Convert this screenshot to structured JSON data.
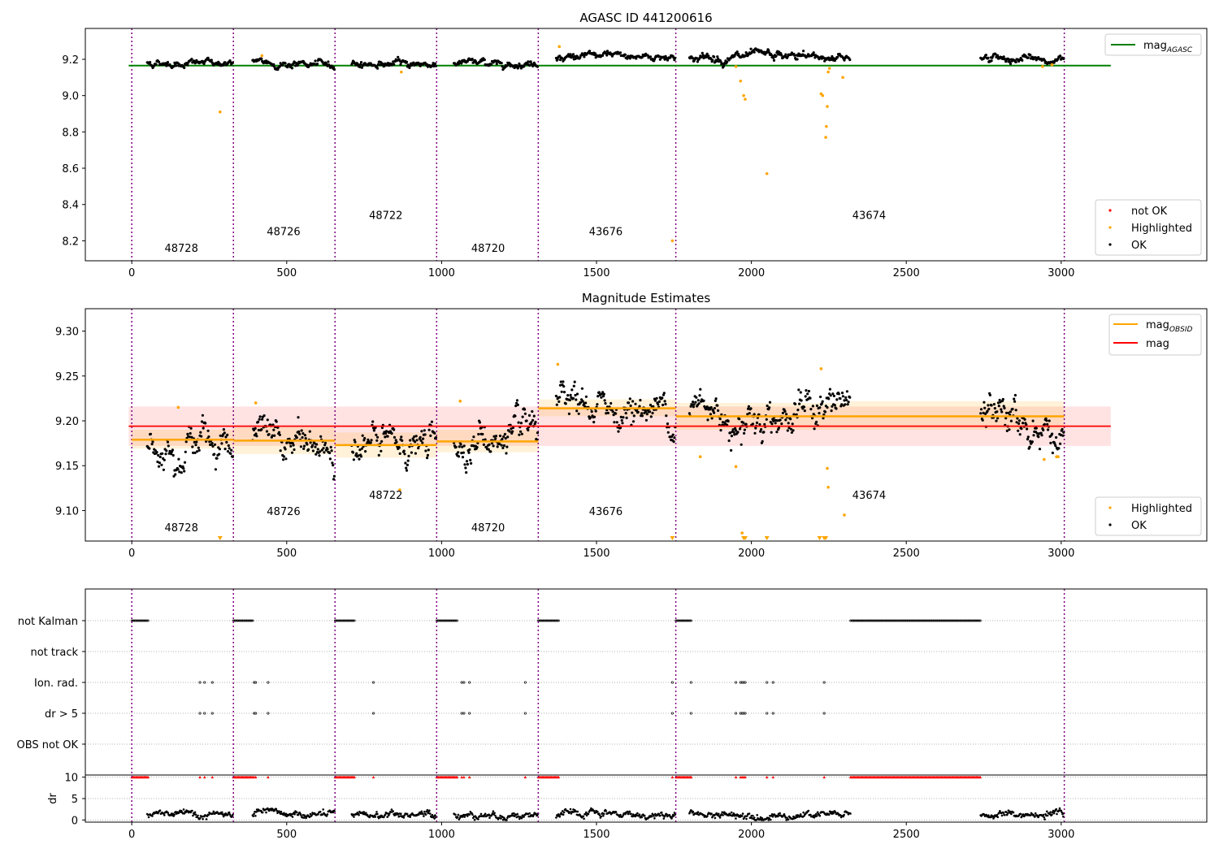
{
  "colors": {
    "ok": "#000000",
    "highlighted": "#ffa500",
    "not_ok": "#ff0000",
    "agasc_line": "#008000",
    "obsid_line": "#ffa500",
    "mag_line": "#ff0000",
    "obsid_sep": "#800080",
    "grid": "#b0b0b0"
  },
  "chart_data": [
    {
      "type": "scatter",
      "title": "AGASC ID 441200616",
      "xlim": [
        -150,
        3470
      ],
      "ylim": [
        8.09,
        9.37
      ],
      "xticks": [
        "0",
        "500",
        "1000",
        "1500",
        "2000",
        "2500",
        "3000"
      ],
      "xtick_values": [
        0,
        500,
        1000,
        1500,
        2000,
        2500,
        3000
      ],
      "yticks": [
        "8.2",
        "8.4",
        "8.6",
        "8.8",
        "9.0",
        "9.2"
      ],
      "ytick_values": [
        8.2,
        8.4,
        8.6,
        8.8,
        9.0,
        9.2
      ],
      "obsid_boundaries": [
        0,
        328,
        656,
        984,
        1312,
        1756,
        3010
      ],
      "obsids": [
        {
          "label": "48728",
          "x": 160,
          "y": 8.14
        },
        {
          "label": "48726",
          "x": 490,
          "y": 8.23
        },
        {
          "label": "48722",
          "x": 820,
          "y": 8.32
        },
        {
          "label": "48720",
          "x": 1150,
          "y": 8.14
        },
        {
          "label": "43676",
          "x": 1530,
          "y": 8.23
        },
        {
          "label": "43674",
          "x": 2380,
          "y": 8.32
        }
      ],
      "mag_agasc": {
        "value": 9.165,
        "x_range": [
          -10,
          3160
        ]
      },
      "ok_segments": [
        {
          "x0": 50,
          "x1": 328,
          "level": 9.18,
          "trend": 0.0,
          "noise": 0.012
        },
        {
          "x0": 390,
          "x1": 656,
          "level": 9.18,
          "trend": -0.015,
          "noise": 0.012
        },
        {
          "x0": 710,
          "x1": 984,
          "level": 9.175,
          "trend": 0.0,
          "noise": 0.012
        },
        {
          "x0": 1040,
          "x1": 1312,
          "level": 9.18,
          "trend": 0.0,
          "noise": 0.012
        },
        {
          "x0": 1370,
          "x1": 1756,
          "level": 9.215,
          "trend": 0.0,
          "noise": 0.012
        },
        {
          "x0": 1800,
          "x1": 2320,
          "level": 9.205,
          "trend": 0.01,
          "noise": 0.015
        },
        {
          "x0": 2740,
          "x1": 3010,
          "level": 9.21,
          "trend": -0.02,
          "noise": 0.013
        }
      ],
      "highlighted": [
        [
          285,
          8.91
        ],
        [
          1950,
          9.16
        ],
        [
          1965,
          9.08
        ],
        [
          1975,
          9.0
        ],
        [
          1980,
          8.98
        ],
        [
          2050,
          8.57
        ],
        [
          2225,
          9.01
        ],
        [
          2230,
          9.0
        ],
        [
          2240,
          8.77
        ],
        [
          2242,
          8.83
        ],
        [
          2245,
          8.94
        ],
        [
          2248,
          9.13
        ],
        [
          2252,
          9.15
        ],
        [
          2295,
          9.1
        ],
        [
          1745,
          8.2
        ],
        [
          1380,
          9.27
        ],
        [
          870,
          9.13
        ],
        [
          2940,
          9.16
        ],
        [
          2970,
          9.17
        ],
        [
          420,
          9.22
        ]
      ],
      "legend": [
        {
          "label": "not OK",
          "kind": "not_ok"
        },
        {
          "label": "Highlighted",
          "kind": "highlighted"
        },
        {
          "label": "OK",
          "kind": "ok"
        }
      ],
      "line_legend": [
        {
          "label": "mag",
          "subscript": "AGASC"
        }
      ]
    },
    {
      "type": "scatter",
      "title": "Magnitude Estimates",
      "xlim": [
        -150,
        3470
      ],
      "ylim": [
        9.066,
        9.325
      ],
      "xticks": [
        "0",
        "500",
        "1000",
        "1500",
        "2000",
        "2500",
        "3000"
      ],
      "xtick_values": [
        0,
        500,
        1000,
        1500,
        2000,
        2500,
        3000
      ],
      "yticks": [
        "9.10",
        "9.15",
        "9.20",
        "9.25",
        "9.30"
      ],
      "ytick_values": [
        9.1,
        9.15,
        9.2,
        9.25,
        9.3
      ],
      "obsid_boundaries": [
        0,
        328,
        656,
        984,
        1312,
        1756,
        3010
      ],
      "obsids": [
        {
          "label": "48728",
          "x": 160,
          "y": 9.077
        },
        {
          "label": "48726",
          "x": 490,
          "y": 9.095
        },
        {
          "label": "48722",
          "x": 820,
          "y": 9.113
        },
        {
          "label": "48720",
          "x": 1150,
          "y": 9.077
        },
        {
          "label": "43676",
          "x": 1530,
          "y": 9.095
        },
        {
          "label": "43674",
          "x": 2380,
          "y": 9.113
        }
      ],
      "mag": {
        "value": 9.194,
        "band": [
          9.172,
          9.216
        ],
        "x_range": [
          -10,
          3160
        ]
      },
      "mag_obsid": [
        {
          "x0": 0,
          "x1": 328,
          "value": 9.179,
          "band": [
            9.169,
            9.19
          ]
        },
        {
          "x0": 328,
          "x1": 656,
          "value": 9.178,
          "band": [
            9.163,
            9.193
          ]
        },
        {
          "x0": 656,
          "x1": 984,
          "value": 9.173,
          "band": [
            9.159,
            9.187
          ]
        },
        {
          "x0": 984,
          "x1": 1312,
          "value": 9.177,
          "band": [
            9.165,
            9.19
          ]
        },
        {
          "x0": 1312,
          "x1": 1756,
          "value": 9.214,
          "band": [
            9.205,
            9.224
          ]
        },
        {
          "x0": 1756,
          "x1": 2320,
          "value": 9.205,
          "band": [
            9.19,
            9.22
          ]
        },
        {
          "x0": 2320,
          "x1": 3010,
          "value": 9.205,
          "band": [
            9.19,
            9.222
          ]
        }
      ],
      "ok_segments": [
        {
          "x0": 50,
          "x1": 328,
          "level": 9.18,
          "trend": 0.0,
          "noise": 0.012
        },
        {
          "x0": 390,
          "x1": 656,
          "level": 9.18,
          "trend": -0.015,
          "noise": 0.012
        },
        {
          "x0": 710,
          "x1": 984,
          "level": 9.172,
          "trend": 0.0,
          "noise": 0.012
        },
        {
          "x0": 1040,
          "x1": 1312,
          "level": 9.178,
          "trend": 0.0,
          "noise": 0.012
        },
        {
          "x0": 1370,
          "x1": 1756,
          "level": 9.213,
          "trend": 0.0,
          "noise": 0.011
        },
        {
          "x0": 1800,
          "x1": 2320,
          "level": 9.205,
          "trend": 0.01,
          "noise": 0.014
        },
        {
          "x0": 2740,
          "x1": 3010,
          "level": 9.21,
          "trend": -0.025,
          "noise": 0.012
        }
      ],
      "highlighted": [
        [
          150,
          9.215
        ],
        [
          400,
          9.22
        ],
        [
          865,
          9.123
        ],
        [
          1060,
          9.222
        ],
        [
          1375,
          9.263
        ],
        [
          1835,
          9.16
        ],
        [
          1950,
          9.149
        ],
        [
          1970,
          9.075
        ],
        [
          2225,
          9.258
        ],
        [
          2245,
          9.147
        ],
        [
          2248,
          9.126
        ],
        [
          2300,
          9.095
        ],
        [
          2945,
          9.157
        ],
        [
          2985,
          9.16
        ],
        [
          2990,
          9.16
        ]
      ],
      "highlighted_offscale": [
        285,
        1745,
        1975,
        1980,
        2050,
        2220,
        2235,
        2240
      ],
      "legend": [
        {
          "label": "Highlighted",
          "kind": "highlighted"
        },
        {
          "label": "OK",
          "kind": "ok"
        }
      ],
      "line_legend": [
        {
          "label": "mag",
          "subscript": "OBSID",
          "kind": "obsid"
        },
        {
          "label": "mag",
          "subscript": "",
          "kind": "mag"
        }
      ]
    },
    {
      "type": "scatter",
      "title": "",
      "xlim": [
        -150,
        3470
      ],
      "ylabel": "dr",
      "xticks": [
        "0",
        "500",
        "1000",
        "1500",
        "2000",
        "2500",
        "3000"
      ],
      "xtick_values": [
        0,
        500,
        1000,
        1500,
        2000,
        2500,
        3000
      ],
      "flag_rows": [
        "not Kalman",
        "not track",
        "Ion. rad.",
        "dr > 5",
        "OBS not OK"
      ],
      "flags": {
        "not Kalman": [
          [
            0,
            55
          ],
          [
            328,
            393
          ],
          [
            656,
            721
          ],
          [
            984,
            1052
          ],
          [
            1312,
            1380
          ],
          [
            1756,
            1808
          ],
          [
            2320,
            2740
          ]
        ],
        "not track": [],
        "Ion. rad.": [
          220,
          235,
          260,
          395,
          400,
          440,
          780,
          1065,
          1072,
          1090,
          1270,
          1745,
          1805,
          1950,
          1965,
          1970,
          1975,
          1980,
          2050,
          2070,
          2235
        ],
        "dr > 5": [
          220,
          235,
          260,
          395,
          400,
          440,
          780,
          1065,
          1072,
          1090,
          1270,
          1745,
          1805,
          1950,
          1965,
          1970,
          1975,
          1980,
          2050,
          2070,
          2235
        ]
      },
      "dr_yticks": [
        "0",
        "5",
        "10"
      ],
      "dr_ytick_values": [
        0,
        5,
        10
      ],
      "dr_ylim": [
        -0.5,
        10.5
      ],
      "dr_clipped_value": 10,
      "dr_ok_segments": [
        [
          50,
          328
        ],
        [
          390,
          656
        ],
        [
          710,
          984
        ],
        [
          1040,
          1312
        ],
        [
          1370,
          1756
        ],
        [
          1800,
          2320
        ],
        [
          2740,
          3010
        ]
      ],
      "dr_ok_level": 1.2
    }
  ]
}
